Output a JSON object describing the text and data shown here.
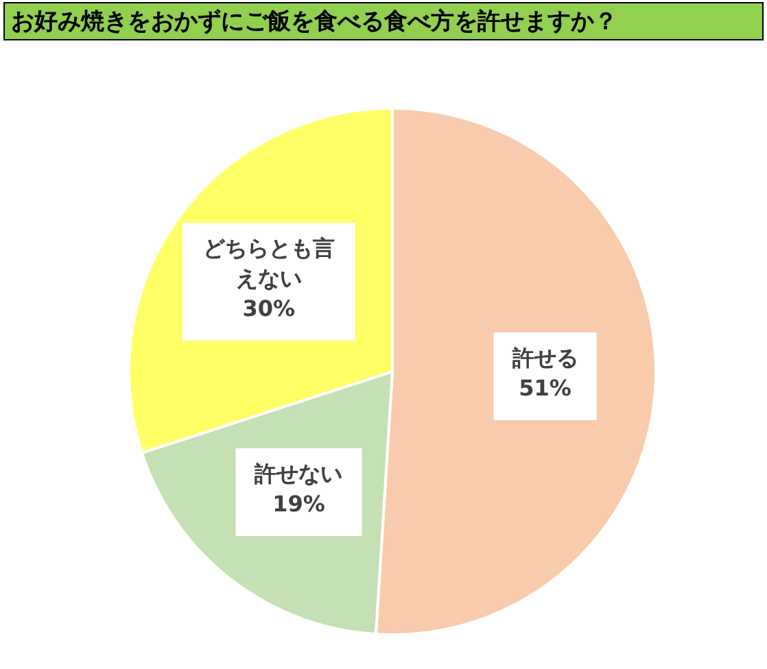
{
  "chart_data": {
    "type": "pie",
    "title": "お好み焼きをおかずにご飯を食べる食べ方を許せますか？",
    "categories": [
      "許せる",
      "許せない",
      "どちらとも言えない"
    ],
    "values": [
      51,
      19,
      30
    ],
    "value_labels": [
      "51%",
      "19%",
      "30%"
    ],
    "colors": [
      "#f8cbad",
      "#c5e0b4",
      "#ffff66"
    ]
  }
}
